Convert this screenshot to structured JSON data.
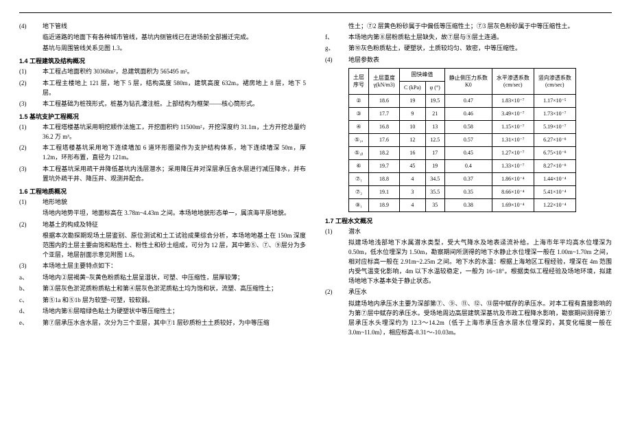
{
  "left": {
    "p1_num": "(4)",
    "p1_title": "地下管线",
    "p1_l1": "临近道路的地面下有各种城市管线，基坑内侧管线已在进场前全部搬迁完成。",
    "p1_l2": "基坑与周围管线关系见图 1.3。",
    "s14": "1.4 工程建筑及结构概况",
    "s14_1n": "(1)",
    "s14_1": "本工程占地面积约 30368m²，总建筑面积为 565495 m²。",
    "s14_2n": "(2)",
    "s14_2": "本工程主楼地上 121 层，地下 5 层，结构高度 580m，建筑高度 632m。裙房地上 8 层，地下 5 层。",
    "s14_3n": "(3)",
    "s14_3": "本工程基础为桩筏形式，桩基为钻孔灌注桩。上部结构为框架——核心筒形式。",
    "s15": "1.5 基坑支护工程概况",
    "s15_1n": "(1)",
    "s15_1": "本工程塔楼基坑采用明挖顺作法施工，开挖面积约 11500m²，开挖深度约 31.1m，土方开挖总量约 36.2 万 m³。",
    "s15_2n": "(2)",
    "s15_2": "本工程塔楼基坑采用地下连续墙加 6 道环形圈梁作为支护结构体系，地下连续墙深 50m，厚 1.2m，环形布置，直径为 121m。",
    "s15_3n": "(3)",
    "s15_3": "本工程基坑采用疏干井降低基坑内浅层潜水；采用降压井对深层承压含水层进行减压降水，并布置坑外疏干井、降压井、观测井配合。",
    "s16": "1.6 工程地质概况",
    "s16_1n": "(1)",
    "s16_1t": "地形地貌",
    "s16_1b": "场地内地势平坦，地面标高在 3.78m~4.43m 之间。本场地地貌形态单一，属滨海平原地貌。",
    "s16_2n": "(2)",
    "s16_2t": "地基土的构成及特征",
    "s16_2b": "根据本次勘探期现场土层鉴别、原位测试和土工试验成果综合分析，本场地地基土在 150m 深度范围内的土层主要由饱和粘性土、粉性土和砂土组成，可分为 12 层，其中第⑤、⑦、⑨层分为多个亚层，地层剖面示意见附图 1.6。",
    "s16_3n": "(3)",
    "s16_3t": "本场地土层主要特点如下：",
    "s16_a": "a、",
    "s16_at": "场地内②层褐黄~灰黄色粉质粘土层呈湿状，可塑、中压缩性，层厚较薄；",
    "s16_b": "b、",
    "s16_bt": "第③层灰色淤泥质粉质粘土和第④层灰色淤泥质粘土均为饱和状，流塑、高压缩性土；",
    "s16_c": "c、",
    "s16_ct": "第⑤1a 和⑤1b 层为软塑~可塑，较软弱。",
    "s16_d": "d、",
    "s16_dt": "场地内第⑥层暗绿色粘土为硬塑状中等压缩性土；",
    "s16_e": "e、",
    "s16_et": "第⑦层承压水含水层，次分为三个亚层，其中⑦1 层砂质粉土土质较好，为中等压缩"
  },
  "right": {
    "cont1": "性土；⑦2 层黄色粉砂属于中偏低等压缩性土；⑦3 层灰色粉砂属于中等压缩性土。",
    "f": "f、",
    "ft": "本场地内第⑧层粉质粘土层缺失，故⑦层与⑨层土连通。",
    "g": "g、",
    "gt": "第⑩灰色粉质粘土，硬塑状，土质较均匀、致密，中等压缩性。",
    "tblnum": "(4)",
    "tblt": "地层参数表",
    "hdr": {
      "c1a": "土层",
      "c1b": "序号",
      "c2a": "土层重度",
      "c2b": "γ(kN/m3)",
      "c3": "固快峰值",
      "c3a": "C (kPa)",
      "c3b": "φ (°)",
      "c4a": "静止侧压力系数",
      "c4b": "K0",
      "c5a": "水平渗透系数",
      "c5b": "(cm/sec)",
      "c6a": "竖向渗透系数",
      "c6b": "(cm/sec)"
    },
    "rows": [
      {
        "a": "②",
        "b": "18.6",
        "c": "19",
        "d": "19.5",
        "e": "0.47",
        "f": "1.83×10⁻⁷",
        "g": "1.17×10⁻⁵"
      },
      {
        "a": "③",
        "b": "17.7",
        "c": "9",
        "d": "21",
        "e": "0.46",
        "f": "3.49×10⁻⁷",
        "g": "1.73×10⁻⁷"
      },
      {
        "a": "④",
        "b": "16.8",
        "c": "10",
        "d": "13",
        "e": "0.58",
        "f": "1.15×10⁻⁷",
        "g": "5.19×10⁻⁷"
      },
      {
        "a": "⑤₁ₐ",
        "b": "17.6",
        "c": "12",
        "d": "12.5",
        "e": "0.57",
        "f": "1.31×10⁻⁷",
        "g": "6.27×10⁻⁸"
      },
      {
        "a": "⑤₁ᵦ",
        "b": "18.2",
        "c": "16",
        "d": "17",
        "e": "0.45",
        "f": "1.27×10⁻⁷",
        "g": "6.75×10⁻⁸"
      },
      {
        "a": "⑥",
        "b": "19.7",
        "c": "45",
        "d": "19",
        "e": "0.4",
        "f": "1.33×10⁻⁷",
        "g": "8.27×10⁻⁸"
      },
      {
        "a": "⑦₁",
        "b": "18.8",
        "c": "4",
        "d": "34.5",
        "e": "0.37",
        "f": "1.86×10⁻⁴",
        "g": "1.44×10⁻⁴"
      },
      {
        "a": "⑦₂",
        "b": "19.1",
        "c": "3",
        "d": "35.5",
        "e": "0.35",
        "f": "8.66×10⁻⁴",
        "g": "5.41×10⁻⁴"
      },
      {
        "a": "⑨₁",
        "b": "18.9",
        "c": "4",
        "d": "35",
        "e": "0.38",
        "f": "1.69×10⁻⁴",
        "g": "1.22×10⁻⁴"
      }
    ],
    "s17": "1.7 工程水文概况",
    "s17_1n": "(1)",
    "s17_1t": "潜水",
    "s17_1b": "拟建场地浅部地下水属潜水类型，受大气降水及地表迳流补给。上海市年平均高水位埋深为 0.50m，低水位埋深为 1.50m，勘察期间所测得的地下水静止水位埋深一般在 1.00m~1.70m 之间，相对应标高一般在 2.91m~2.25m 之间。地下水的水温：根据上海地区工程经验，埋深在 4m 范围内受气温变化影响，4m 以下水温较稳定，一般为 16~18°。根据类似工程经验及场地环境，拟建场地地下水基本处于静止状态。",
    "s17_2n": "(2)",
    "s17_2t": "承压水",
    "s17_2b": "拟建场地内承压水主要为深部第⑦、⑨、⑪、⑫、⑬层中赋存的承压水。对本工程有直接影响的为第⑦层中赋存的承压水。受场地周边高层建筑深基坑及市政工程降水影响，勘察期间测得第⑦层承压水头埋深约为 12.3～14.2m（低于上海市承压含水层水位埋深的，其变化幅度一般在 3.0m~11.0m），相应标高-8.31～-10.03m。"
  }
}
